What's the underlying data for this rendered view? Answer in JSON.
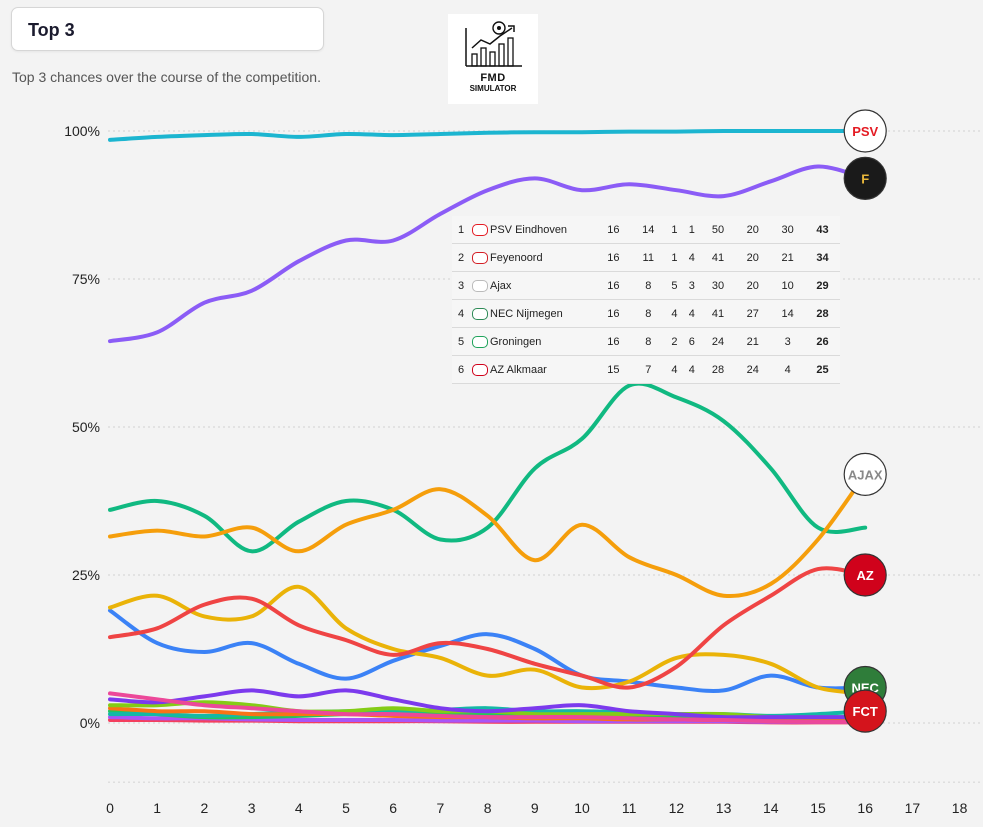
{
  "header": {
    "title": "Top 3",
    "subtitle": "Top 3 chances over the course of the competition.",
    "logo_line1": "FMD",
    "logo_line2": "SIMULATOR"
  },
  "standings": [
    {
      "pos": "1",
      "team": "PSV Eindhoven",
      "p": "16",
      "w": "14",
      "d": "1",
      "l": "1",
      "gf": "50",
      "ga": "20",
      "gd": "30",
      "pts": "43",
      "color": "#e41b23"
    },
    {
      "pos": "2",
      "team": "Feyenoord",
      "p": "16",
      "w": "11",
      "d": "1",
      "l": "4",
      "gf": "41",
      "ga": "20",
      "gd": "21",
      "pts": "34",
      "color": "#d31e25"
    },
    {
      "pos": "3",
      "team": "Ajax",
      "p": "16",
      "w": "8",
      "d": "5",
      "l": "3",
      "gf": "30",
      "ga": "20",
      "gd": "10",
      "pts": "29",
      "color": "#bbbbbb"
    },
    {
      "pos": "4",
      "team": "NEC Nijmegen",
      "p": "16",
      "w": "8",
      "d": "4",
      "l": "4",
      "gf": "41",
      "ga": "27",
      "gd": "14",
      "pts": "28",
      "color": "#2e8b57"
    },
    {
      "pos": "5",
      "team": "Groningen",
      "p": "16",
      "w": "8",
      "d": "2",
      "l": "6",
      "gf": "24",
      "ga": "21",
      "gd": "3",
      "pts": "26",
      "color": "#1fa35b"
    },
    {
      "pos": "6",
      "team": "AZ Alkmaar",
      "p": "15",
      "w": "7",
      "d": "4",
      "l": "4",
      "gf": "28",
      "ga": "24",
      "gd": "4",
      "pts": "25",
      "color": "#d0021b"
    }
  ],
  "chart_data": {
    "type": "line",
    "x": [
      0,
      1,
      2,
      3,
      4,
      5,
      6,
      7,
      8,
      9,
      10,
      11,
      12,
      13,
      14,
      15,
      16
    ],
    "xticks": [
      "0",
      "1",
      "2",
      "3",
      "4",
      "5",
      "6",
      "7",
      "8",
      "9",
      "10",
      "11",
      "12",
      "13",
      "14",
      "15",
      "16",
      "17",
      "18"
    ],
    "xlim": [
      0,
      18
    ],
    "ylim": [
      -10,
      100
    ],
    "yticks": [
      {
        "v": 100,
        "label": "100%"
      },
      {
        "v": 75,
        "label": "75%"
      },
      {
        "v": 50,
        "label": "50%"
      },
      {
        "v": 25,
        "label": "25%"
      },
      {
        "v": 0,
        "label": "0%"
      }
    ],
    "gridlines": [
      100,
      75,
      50,
      25,
      0,
      -10
    ],
    "series": [
      {
        "color": "#1cb5d0",
        "badge": "PSV",
        "badge_bg": "#ffffff",
        "badge_fg": "#e41b23",
        "values": [
          98.5,
          99,
          99.3,
          99.5,
          99,
          99.5,
          99.3,
          99.5,
          99.7,
          99.8,
          99.8,
          99.9,
          99.9,
          100,
          100,
          100,
          100
        ]
      },
      {
        "color": "#8b5cf6",
        "badge": "F",
        "badge_bg": "#1a1a1a",
        "badge_fg": "#e8b73a",
        "values": [
          64.5,
          66,
          71,
          73,
          78,
          81.5,
          81.5,
          86,
          90,
          92,
          90,
          91,
          90,
          89,
          91.5,
          94,
          92
        ]
      },
      {
        "color": "#f59e0b",
        "badge": "AJAX",
        "badge_bg": "#ffffff",
        "badge_fg": "#888888",
        "values": [
          31.5,
          32.5,
          31.5,
          33,
          29,
          33.5,
          36,
          39.5,
          35,
          27.5,
          33.5,
          28,
          25,
          21.5,
          23.5,
          31,
          42
        ]
      },
      {
        "color": "#10b981",
        "badge": "",
        "badge_bg": "",
        "badge_fg": "",
        "values": [
          36,
          37.5,
          35,
          29,
          34,
          37.5,
          36,
          31,
          33,
          43,
          48,
          57,
          55,
          51,
          43,
          33,
          33
        ]
      },
      {
        "color": "#ef4444",
        "badge": "AZ",
        "badge_bg": "#d0021b",
        "badge_fg": "#ffffff",
        "values": [
          14.5,
          16,
          20,
          21,
          16.5,
          14,
          11.5,
          13.5,
          12.5,
          10,
          8,
          6,
          9.5,
          16.5,
          21.5,
          26,
          25
        ]
      },
      {
        "color": "#eab308",
        "badge": "",
        "badge_bg": "",
        "badge_fg": "",
        "values": [
          19.5,
          21.5,
          18,
          18,
          23,
          16,
          12.5,
          11,
          8,
          9,
          6,
          7,
          11,
          11.5,
          10,
          6,
          5
        ]
      },
      {
        "color": "#3b82f6",
        "badge": "NEC",
        "badge_bg": "#2f7d3a",
        "badge_fg": "#ffffff",
        "values": [
          19,
          13.5,
          12,
          13.5,
          10,
          7.5,
          10.5,
          13,
          15,
          12.5,
          8,
          7,
          6,
          5.5,
          8,
          6,
          6
        ]
      },
      {
        "color": "#ec4899",
        "badge": "",
        "badge_bg": "",
        "badge_fg": "",
        "values": [
          5,
          4,
          3,
          2.5,
          2,
          1.5,
          1.5,
          1.2,
          1,
          1,
          1,
          0.8,
          0.6,
          0.5,
          0.3,
          0.2,
          0.2
        ]
      },
      {
        "color": "#7c3aed",
        "badge": "",
        "badge_bg": "",
        "badge_fg": "",
        "values": [
          4,
          3.5,
          4.5,
          5.5,
          4.5,
          5.5,
          4,
          2.5,
          2,
          2.5,
          3,
          2,
          1.5,
          1,
          1,
          1,
          1
        ]
      },
      {
        "color": "#84cc16",
        "badge": "",
        "badge_bg": "",
        "badge_fg": "",
        "values": [
          3,
          3,
          3.5,
          3,
          2,
          2,
          2.5,
          2,
          2,
          1.5,
          1.5,
          1.5,
          1.5,
          1.5,
          1,
          1,
          1
        ]
      },
      {
        "color": "#f97316",
        "badge": "",
        "badge_bg": "",
        "badge_fg": "",
        "values": [
          2.5,
          2,
          2,
          1.5,
          1.5,
          1.5,
          1.2,
          1,
          1,
          0.8,
          0.8,
          0.6,
          0.6,
          0.5,
          0.5,
          0.4,
          0.4
        ]
      },
      {
        "color": "#14b8a6",
        "badge": "FCT",
        "badge_bg": "#d4141c",
        "badge_fg": "#ffffff",
        "values": [
          1.5,
          1.5,
          1.2,
          1.5,
          1.8,
          2,
          2,
          2.2,
          2.5,
          2,
          2,
          1.8,
          1.5,
          1.5,
          1.2,
          1.5,
          2
        ]
      },
      {
        "color": "#22c55e",
        "badge": "",
        "badge_bg": "",
        "badge_fg": "",
        "values": [
          2,
          1.5,
          1,
          1,
          1.2,
          1.5,
          1.5,
          1.5,
          1.5,
          1.5,
          1.2,
          1,
          1,
          1,
          0.8,
          0.8,
          0.8
        ]
      },
      {
        "color": "#a855f7",
        "badge": "",
        "badge_bg": "",
        "badge_fg": "",
        "values": [
          1,
          0.8,
          0.8,
          0.6,
          0.5,
          0.5,
          0.5,
          0.4,
          0.4,
          0.4,
          0.3,
          0.3,
          0.3,
          0.3,
          0.2,
          0.2,
          0.2
        ]
      },
      {
        "color": "#f43f5e",
        "badge": "",
        "badge_bg": "",
        "badge_fg": "",
        "values": [
          0.5,
          0.5,
          0.4,
          0.4,
          0.3,
          0.3,
          0.3,
          0.3,
          0.2,
          0.2,
          0.2,
          0.2,
          0.2,
          0.2,
          0.1,
          0.1,
          0.1
        ]
      }
    ]
  }
}
